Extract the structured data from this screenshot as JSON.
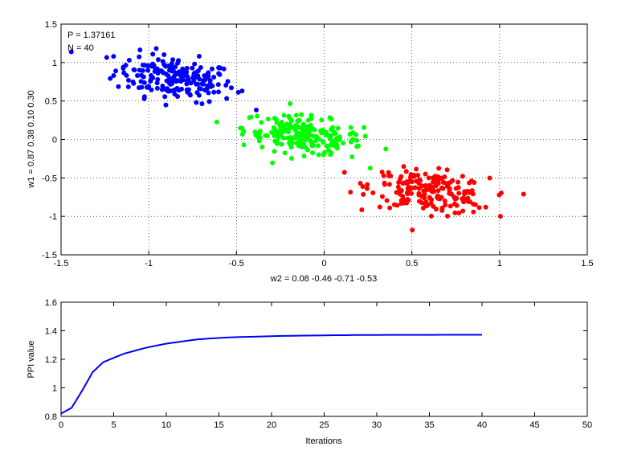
{
  "chart_data": [
    {
      "type": "scatter",
      "title": "",
      "xlabel": "w2 = 0.08  -0.46  -0.71  -0.53",
      "ylabel": "w1 = 0.87  0.38  0.10  0.30",
      "xlim": [
        -1.5,
        1.5
      ],
      "ylim": [
        -1.5,
        1.5
      ],
      "xticks": [
        "-1.5",
        "-1",
        "-0.5",
        "0",
        "0.5",
        "1",
        "1.5"
      ],
      "yticks": [
        "-1.5",
        "-1",
        "-0.5",
        "0",
        "0.5",
        "1",
        "1.5"
      ],
      "grid": "dotted",
      "annotations": [
        "P = 1.37161",
        "N = 40"
      ],
      "series": [
        {
          "color": "#0000ff",
          "center": [
            -0.85,
            0.8
          ],
          "spread": [
            0.17,
            0.14
          ],
          "count": 200,
          "tilt": -0.3
        },
        {
          "color": "#00ff00",
          "center": [
            -0.12,
            0.05
          ],
          "spread": [
            0.17,
            0.12
          ],
          "count": 200,
          "tilt": -0.3
        },
        {
          "color": "#ff0000",
          "center": [
            0.6,
            -0.68
          ],
          "spread": [
            0.17,
            0.13
          ],
          "count": 200,
          "tilt": -0.25
        }
      ]
    },
    {
      "type": "line",
      "title": "",
      "xlabel": "Iterations",
      "ylabel": "PPI value",
      "xlim": [
        0,
        50
      ],
      "ylim": [
        0.8,
        1.6
      ],
      "xticks": [
        "0",
        "5",
        "10",
        "15",
        "20",
        "25",
        "30",
        "35",
        "40",
        "45",
        "50"
      ],
      "yticks": [
        "0.8",
        "1",
        "1.2",
        "1.4",
        "1.6"
      ],
      "grid": "off",
      "series": [
        {
          "color": "#0000ff",
          "x": [
            0,
            1,
            2,
            3,
            4,
            5,
            6,
            7,
            8,
            9,
            10,
            11,
            12,
            13,
            14,
            15,
            16,
            17,
            18,
            19,
            20,
            21,
            22,
            23,
            24,
            25,
            26,
            27,
            28,
            29,
            30,
            31,
            32,
            33,
            34,
            35,
            36,
            37,
            38,
            39,
            40
          ],
          "y": [
            0.82,
            0.86,
            0.98,
            1.11,
            1.18,
            1.21,
            1.24,
            1.26,
            1.28,
            1.295,
            1.31,
            1.32,
            1.33,
            1.34,
            1.345,
            1.35,
            1.353,
            1.356,
            1.358,
            1.36,
            1.362,
            1.364,
            1.365,
            1.366,
            1.367,
            1.368,
            1.369,
            1.369,
            1.37,
            1.37,
            1.37,
            1.371,
            1.371,
            1.371,
            1.371,
            1.371,
            1.3716,
            1.3716,
            1.3716,
            1.3716,
            1.3716
          ]
        }
      ]
    }
  ]
}
